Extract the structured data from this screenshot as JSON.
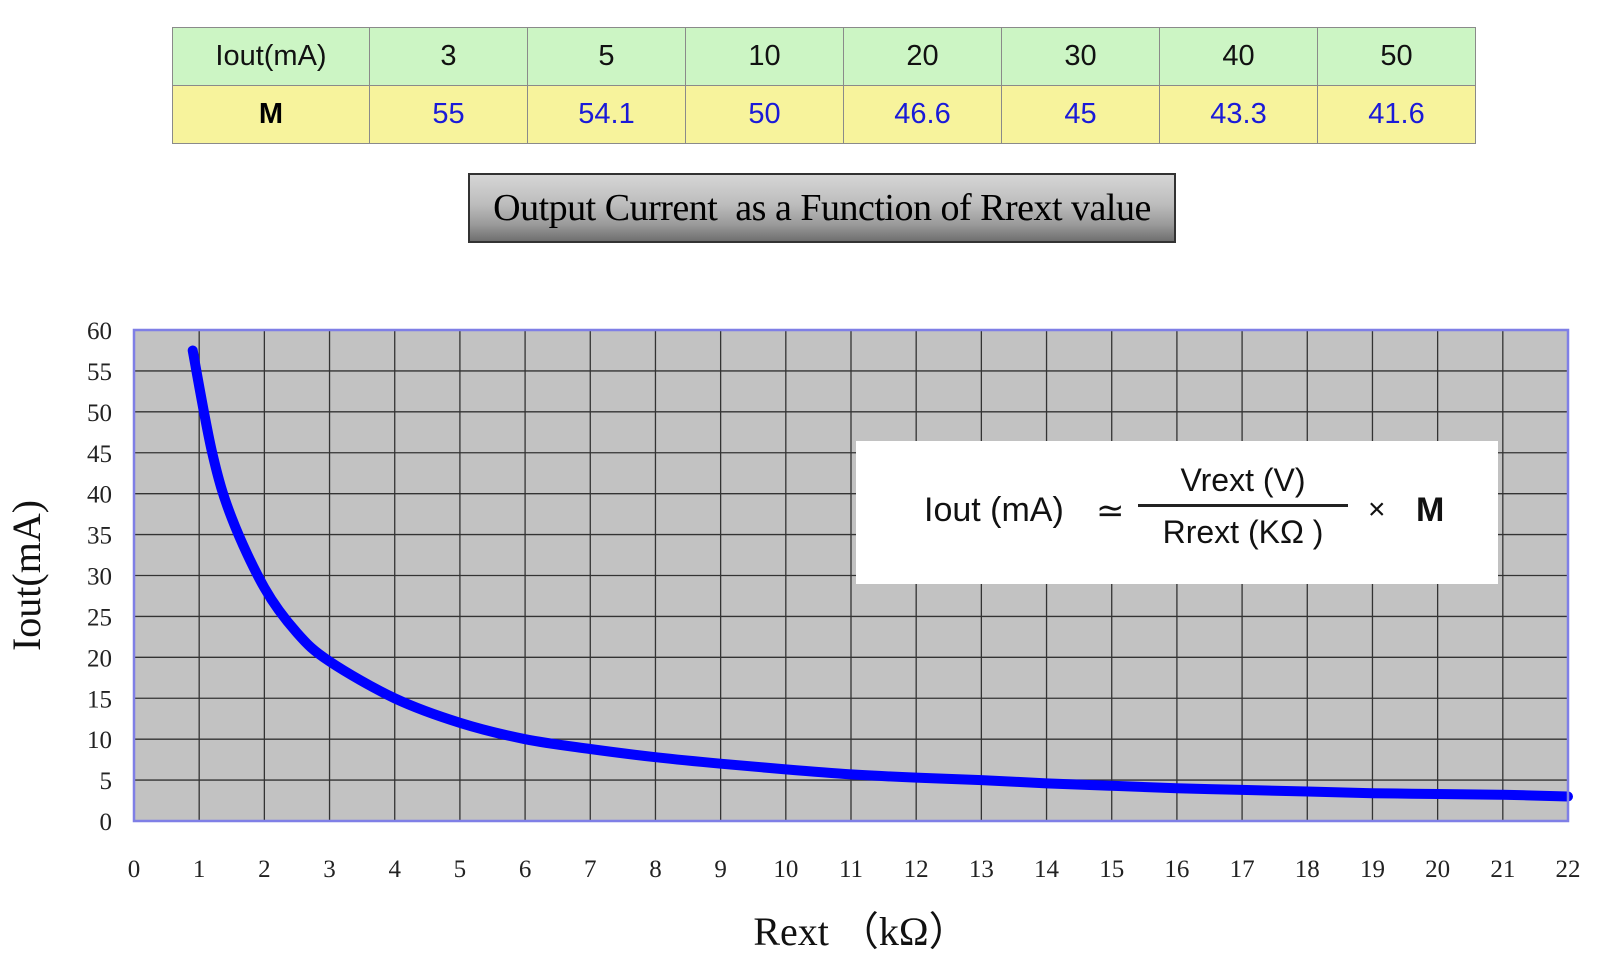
{
  "table": {
    "row1": {
      "header": "Iout(mA)",
      "cells": [
        "3",
        "5",
        "10",
        "20",
        "30",
        "40",
        "50"
      ]
    },
    "row2": {
      "header": "M",
      "cells": [
        "55",
        "54.1",
        "50",
        "46.6",
        "45",
        "43.3",
        "41.6"
      ]
    }
  },
  "banner": {
    "title": "Output Current  as a Function of Rrext value"
  },
  "formula": {
    "lhs": "Iout (mA)",
    "approx": "≃",
    "numerator": "Vrext (V)",
    "denominator": "Rrext (KΩ )",
    "times": "×",
    "factor": "M"
  },
  "chart_data": {
    "type": "line",
    "title": "",
    "xlabel": "Rext （kΩ）",
    "ylabel": "Iout(mA)",
    "xlim": [
      0,
      22
    ],
    "ylim": [
      0,
      60
    ],
    "xticks": [
      0,
      1,
      2,
      3,
      4,
      5,
      6,
      7,
      8,
      9,
      10,
      11,
      12,
      13,
      14,
      15,
      16,
      17,
      18,
      19,
      20,
      21,
      22
    ],
    "yticks": [
      0,
      5,
      10,
      15,
      20,
      25,
      30,
      35,
      40,
      45,
      50,
      55,
      60
    ],
    "grid": true,
    "colors": {
      "plot_bg": "#c2c2c2",
      "grid": "#333333",
      "frame": "#7f7fe6",
      "line": "#0000ff"
    },
    "series": [
      {
        "name": "",
        "x": [
          0.9,
          1.2,
          1.5,
          2,
          2.5,
          3,
          4,
          5,
          6,
          7,
          8,
          9,
          10,
          11,
          12,
          13,
          14,
          15,
          16,
          17,
          18,
          19,
          20,
          21,
          22
        ],
        "y": [
          57.5,
          45,
          37,
          28.5,
          23,
          19.5,
          15,
          12,
          10,
          8.8,
          7.8,
          7,
          6.3,
          5.7,
          5.3,
          5,
          4.6,
          4.3,
          4,
          3.8,
          3.6,
          3.4,
          3.3,
          3.2,
          3
        ]
      }
    ]
  }
}
